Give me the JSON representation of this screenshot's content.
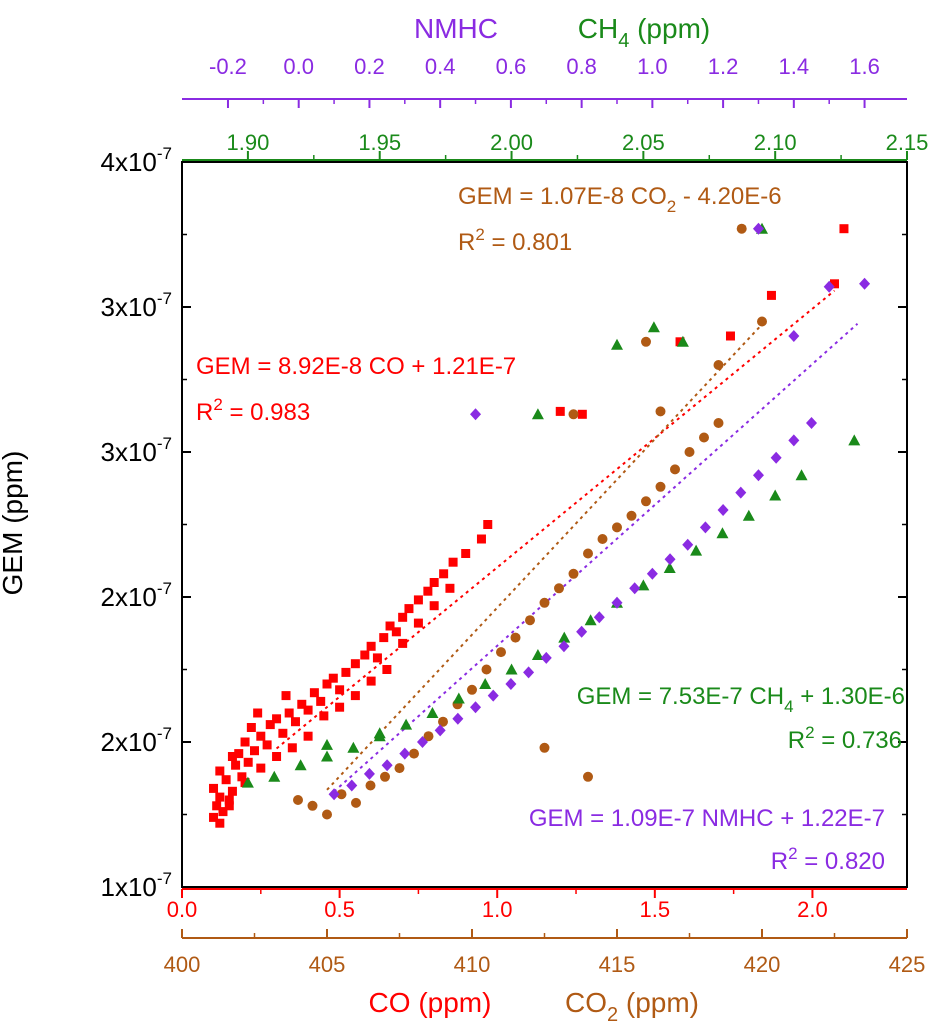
{
  "colors": {
    "co": "#ff0000",
    "co2": "#b05a14",
    "ch4": "#1a8a1a",
    "nmhc": "#8a2be2",
    "axis": "#000000"
  },
  "axes": {
    "y": {
      "label": "GEM (ppm)",
      "ticks": [
        {
          "value": 1e-07,
          "mant": "1x10",
          "exp": "-7"
        },
        {
          "value": 1.5e-07,
          "mant": "2x10",
          "exp": "-7"
        },
        {
          "value": 2e-07,
          "mant": "2x10",
          "exp": "-7"
        },
        {
          "value": 2.5e-07,
          "mant": "3x10",
          "exp": "-7"
        },
        {
          "value": 3e-07,
          "mant": "3x10",
          "exp": "-7"
        },
        {
          "value": 3.5e-07,
          "mant": "4x10",
          "exp": "-7"
        }
      ],
      "range": [
        1e-07,
        3.5e-07
      ]
    },
    "co": {
      "label": "CO (ppm)",
      "range": [
        0,
        2.3
      ],
      "ticks": [
        "0.0",
        "0.5",
        "1.0",
        "1.5",
        "2.0"
      ],
      "tick_values": [
        0,
        0.5,
        1.0,
        1.5,
        2.0
      ]
    },
    "co2": {
      "label_main": "CO",
      "label_sub": "2",
      "label_tail": " (ppm)",
      "range": [
        400,
        425
      ],
      "ticks": [
        "400",
        "405",
        "410",
        "415",
        "420",
        "425"
      ],
      "tick_values": [
        400,
        405,
        410,
        415,
        420,
        425
      ]
    },
    "ch4": {
      "label_main": "CH",
      "label_sub": "4",
      "label_tail": " (ppm)",
      "range": [
        1.875,
        2.15
      ],
      "ticks": [
        "1.90",
        "1.95",
        "2.00",
        "2.05",
        "2.10",
        "2.15"
      ],
      "tick_values": [
        1.9,
        1.95,
        2.0,
        2.05,
        2.1,
        2.15
      ]
    },
    "nmhc": {
      "label": "NMHC",
      "range": [
        -0.33,
        1.72
      ],
      "ticks": [
        "-0.2",
        "0.0",
        "0.2",
        "0.4",
        "0.6",
        "0.8",
        "1.0",
        "1.2",
        "1.4",
        "1.6"
      ],
      "tick_values": [
        -0.2,
        0.0,
        0.2,
        0.4,
        0.6,
        0.8,
        1.0,
        1.2,
        1.4,
        1.6
      ]
    }
  },
  "annotations": {
    "co2_eq_pre": "GEM = 1.07E-8 CO",
    "co2_eq_sub": "2",
    "co2_eq_post": " - 4.20E-6",
    "co2_r2_pre": "R",
    "co2_r2_sup": "2",
    "co2_r2_post": " = 0.801",
    "co_eq": "GEM = 8.92E-8 CO + 1.21E-7",
    "co_r2_pre": "R",
    "co_r2_sup": "2",
    "co_r2_post": " = 0.983",
    "ch4_eq_pre": "GEM = 7.53E-7 CH",
    "ch4_eq_sub": "4",
    "ch4_eq_post": " + 1.30E-6",
    "ch4_r2_pre": "R",
    "ch4_r2_sup": "2",
    "ch4_r2_post": " = 0.736",
    "nmhc_eq": "GEM = 1.09E-7 NMHC + 1.22E-7",
    "nmhc_r2_pre": "R",
    "nmhc_r2_sup": "2",
    "nmhc_r2_post": " = 0.820"
  },
  "chart_data": {
    "type": "scatter",
    "y_label": "GEM (ppm)",
    "y_range": [
      1e-07,
      3.5e-07
    ],
    "series": [
      {
        "key": "co",
        "axis": "co",
        "marker": "square",
        "fit": {
          "slope": 8.92e-08,
          "intercept": 1.21e-07,
          "x_range": [
            0.3,
            2.07
          ]
        },
        "points": [
          [
            0.1,
            1.24e-07
          ],
          [
            0.11,
            1.28e-07
          ],
          [
            0.12,
            1.31e-07
          ],
          [
            0.1,
            1.34e-07
          ],
          [
            0.13,
            1.26e-07
          ],
          [
            0.14,
            1.37e-07
          ],
          [
            0.12,
            1.4e-07
          ],
          [
            0.15,
            1.3e-07
          ],
          [
            0.17,
            1.42e-07
          ],
          [
            0.16,
            1.33e-07
          ],
          [
            0.18,
            1.46e-07
          ],
          [
            0.19,
            1.38e-07
          ],
          [
            0.2,
            1.5e-07
          ],
          [
            0.21,
            1.43e-07
          ],
          [
            0.23,
            1.47e-07
          ],
          [
            0.25,
            1.52e-07
          ],
          [
            0.22,
            1.55e-07
          ],
          [
            0.27,
            1.49e-07
          ],
          [
            0.28,
            1.56e-07
          ],
          [
            0.3,
            1.58e-07
          ],
          [
            0.32,
            1.53e-07
          ],
          [
            0.34,
            1.6e-07
          ],
          [
            0.36,
            1.57e-07
          ],
          [
            0.38,
            1.63e-07
          ],
          [
            0.4,
            1.61e-07
          ],
          [
            0.42,
            1.67e-07
          ],
          [
            0.44,
            1.64e-07
          ],
          [
            0.46,
            1.7e-07
          ],
          [
            0.48,
            1.72e-07
          ],
          [
            0.5,
            1.68e-07
          ],
          [
            0.52,
            1.74e-07
          ],
          [
            0.55,
            1.77e-07
          ],
          [
            0.58,
            1.8e-07
          ],
          [
            0.6,
            1.83e-07
          ],
          [
            0.62,
            1.79e-07
          ],
          [
            0.64,
            1.86e-07
          ],
          [
            0.66,
            1.9e-07
          ],
          [
            0.68,
            1.88e-07
          ],
          [
            0.7,
            1.93e-07
          ],
          [
            0.72,
            1.96e-07
          ],
          [
            0.75,
            1.99e-07
          ],
          [
            0.78,
            2.02e-07
          ],
          [
            0.8,
            2.05e-07
          ],
          [
            0.83,
            2.08e-07
          ],
          [
            0.86,
            2.12e-07
          ],
          [
            0.9,
            2.15e-07
          ],
          [
            0.95,
            2.2e-07
          ],
          [
            0.97,
            2.25e-07
          ],
          [
            1.2,
            2.64e-07
          ],
          [
            1.27,
            2.63e-07
          ],
          [
            1.58,
            2.88e-07
          ],
          [
            1.74,
            2.9e-07
          ],
          [
            1.87,
            3.04e-07
          ],
          [
            2.07,
            3.08e-07
          ],
          [
            2.1,
            3.27e-07
          ],
          [
            0.15,
            1.28e-07
          ],
          [
            0.2,
            1.36e-07
          ],
          [
            0.25,
            1.41e-07
          ],
          [
            0.3,
            1.45e-07
          ],
          [
            0.35,
            1.48e-07
          ],
          [
            0.4,
            1.52e-07
          ],
          [
            0.45,
            1.59e-07
          ],
          [
            0.5,
            1.62e-07
          ],
          [
            0.55,
            1.66e-07
          ],
          [
            0.6,
            1.71e-07
          ],
          [
            0.65,
            1.75e-07
          ],
          [
            0.7,
            1.84e-07
          ],
          [
            0.75,
            1.91e-07
          ],
          [
            0.8,
            1.97e-07
          ],
          [
            0.85,
            2.03e-07
          ],
          [
            0.12,
            1.22e-07
          ],
          [
            0.16,
            1.45e-07
          ],
          [
            0.24,
            1.6e-07
          ],
          [
            0.33,
            1.66e-07
          ]
        ]
      },
      {
        "key": "co2",
        "axis": "co2",
        "marker": "circle",
        "fit": {
          "slope": 1.07e-08,
          "intercept": -4.2e-06,
          "x_range": [
            405,
            420
          ]
        },
        "points": [
          [
            404.0,
            1.3e-07
          ],
          [
            404.5,
            1.28e-07
          ],
          [
            405.0,
            1.25e-07
          ],
          [
            405.5,
            1.32e-07
          ],
          [
            406.0,
            1.29e-07
          ],
          [
            406.5,
            1.35e-07
          ],
          [
            407.0,
            1.38e-07
          ],
          [
            407.5,
            1.41e-07
          ],
          [
            408.0,
            1.46e-07
          ],
          [
            408.5,
            1.52e-07
          ],
          [
            409.0,
            1.57e-07
          ],
          [
            409.5,
            1.63e-07
          ],
          [
            410.0,
            1.68e-07
          ],
          [
            410.5,
            1.75e-07
          ],
          [
            411.0,
            1.81e-07
          ],
          [
            411.5,
            1.86e-07
          ],
          [
            412.0,
            1.92e-07
          ],
          [
            412.5,
            1.98e-07
          ],
          [
            413.0,
            2.03e-07
          ],
          [
            413.5,
            2.08e-07
          ],
          [
            414.0,
            2.15e-07
          ],
          [
            414.5,
            2.2e-07
          ],
          [
            415.0,
            2.24e-07
          ],
          [
            415.5,
            2.28e-07
          ],
          [
            416.0,
            2.33e-07
          ],
          [
            416.5,
            2.38e-07
          ],
          [
            417.0,
            2.44e-07
          ],
          [
            417.5,
            2.5e-07
          ],
          [
            418.0,
            2.55e-07
          ],
          [
            418.5,
            2.6e-07
          ],
          [
            413.5,
            2.63e-07
          ],
          [
            416.5,
            2.64e-07
          ],
          [
            416.0,
            2.88e-07
          ],
          [
            420.0,
            2.95e-07
          ],
          [
            418.5,
            2.8e-07
          ],
          [
            419.3,
            3.27e-07
          ],
          [
            414.0,
            1.38e-07
          ],
          [
            412.5,
            1.48e-07
          ]
        ]
      },
      {
        "key": "ch4",
        "axis": "ch4",
        "marker": "triangle",
        "fit": {
          "slope": 7.53e-07,
          "intercept": 1.3e-06,
          "x_range": [
            1.91,
            2.11
          ]
        },
        "points": [
          [
            1.9,
            1.36e-07
          ],
          [
            1.91,
            1.38e-07
          ],
          [
            1.92,
            1.42e-07
          ],
          [
            1.93,
            1.45e-07
          ],
          [
            1.94,
            1.48e-07
          ],
          [
            1.95,
            1.52e-07
          ],
          [
            1.96,
            1.56e-07
          ],
          [
            1.97,
            1.6e-07
          ],
          [
            1.98,
            1.65e-07
          ],
          [
            1.99,
            1.7e-07
          ],
          [
            2.0,
            1.75e-07
          ],
          [
            2.01,
            1.8e-07
          ],
          [
            2.02,
            1.86e-07
          ],
          [
            2.03,
            1.92e-07
          ],
          [
            2.04,
            1.98e-07
          ],
          [
            2.05,
            2.04e-07
          ],
          [
            2.06,
            2.1e-07
          ],
          [
            2.07,
            2.16e-07
          ],
          [
            2.08,
            2.22e-07
          ],
          [
            2.09,
            2.28e-07
          ],
          [
            2.1,
            2.35e-07
          ],
          [
            2.11,
            2.42e-07
          ],
          [
            2.01,
            2.63e-07
          ],
          [
            2.04,
            2.87e-07
          ],
          [
            2.065,
            2.88e-07
          ],
          [
            2.095,
            3.27e-07
          ],
          [
            2.13,
            2.54e-07
          ],
          [
            2.054,
            2.93e-07
          ],
          [
            1.93,
            1.49e-07
          ],
          [
            1.95,
            1.53e-07
          ]
        ]
      },
      {
        "key": "nmhc",
        "axis": "nmhc",
        "marker": "diamond",
        "fit": {
          "slope": 1.09e-07,
          "intercept": 1.22e-07,
          "x_range": [
            0.1,
            1.58
          ]
        },
        "points": [
          [
            0.1,
            1.32e-07
          ],
          [
            0.15,
            1.35e-07
          ],
          [
            0.2,
            1.39e-07
          ],
          [
            0.25,
            1.42e-07
          ],
          [
            0.3,
            1.46e-07
          ],
          [
            0.35,
            1.5e-07
          ],
          [
            0.4,
            1.54e-07
          ],
          [
            0.45,
            1.58e-07
          ],
          [
            0.5,
            1.62e-07
          ],
          [
            0.55,
            1.66e-07
          ],
          [
            0.6,
            1.7e-07
          ],
          [
            0.65,
            1.74e-07
          ],
          [
            0.7,
            1.79e-07
          ],
          [
            0.75,
            1.83e-07
          ],
          [
            0.8,
            1.88e-07
          ],
          [
            0.85,
            1.93e-07
          ],
          [
            0.9,
            1.98e-07
          ],
          [
            0.95,
            2.03e-07
          ],
          [
            1.0,
            2.08e-07
          ],
          [
            1.05,
            2.13e-07
          ],
          [
            1.1,
            2.18e-07
          ],
          [
            1.15,
            2.24e-07
          ],
          [
            1.2,
            2.3e-07
          ],
          [
            1.25,
            2.36e-07
          ],
          [
            1.3,
            2.42e-07
          ],
          [
            1.35,
            2.48e-07
          ],
          [
            1.4,
            2.54e-07
          ],
          [
            1.45,
            2.6e-07
          ],
          [
            0.5,
            2.63e-07
          ],
          [
            1.4,
            2.9e-07
          ],
          [
            1.3,
            3.27e-07
          ],
          [
            1.5,
            3.07e-07
          ],
          [
            1.6,
            3.08e-07
          ]
        ]
      }
    ]
  }
}
